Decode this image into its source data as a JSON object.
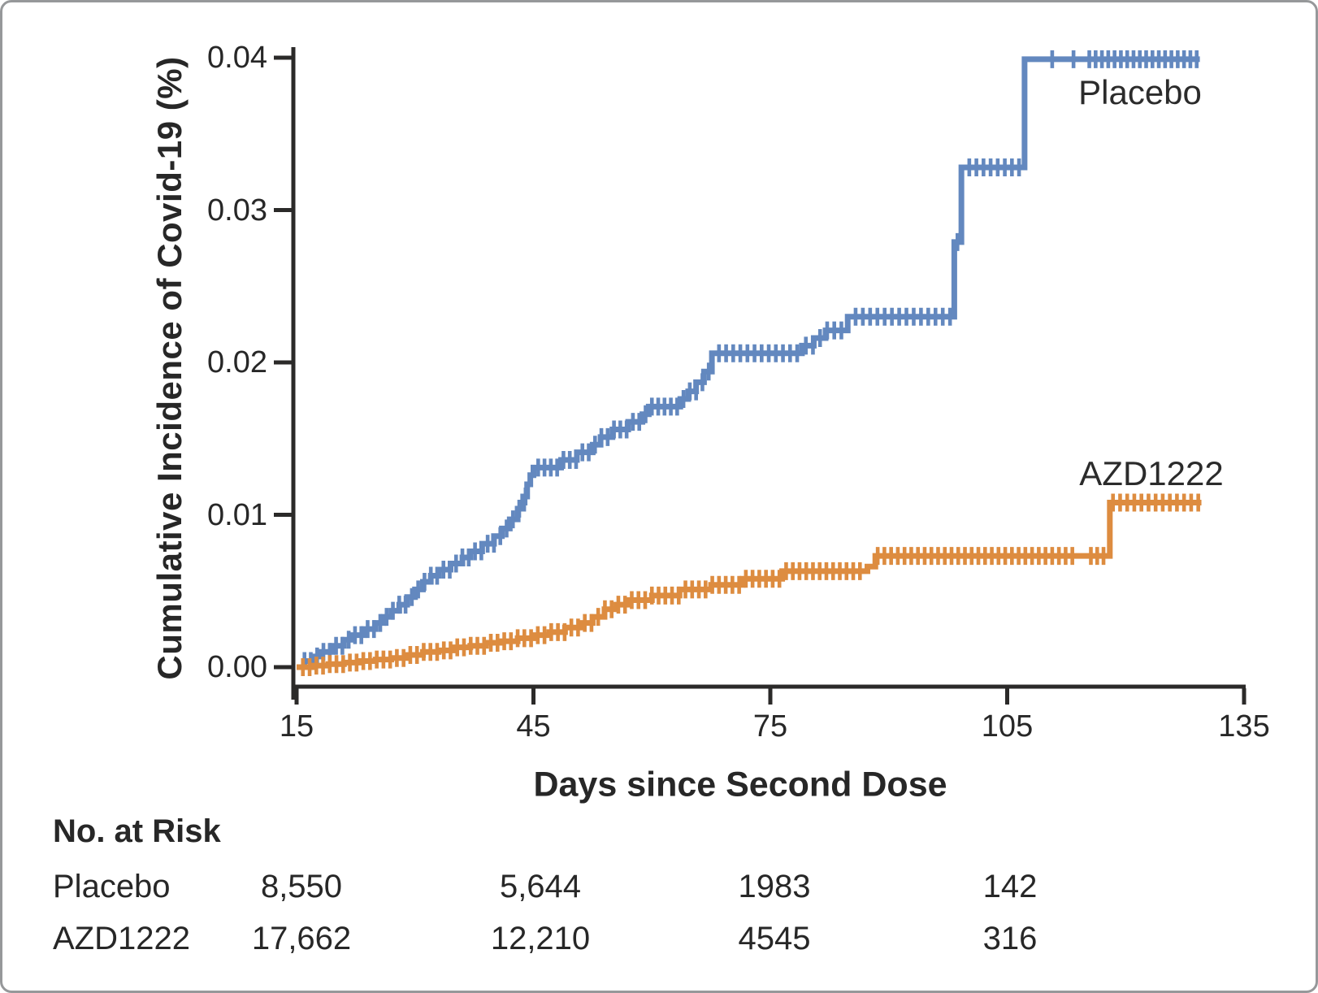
{
  "figure": {
    "background": "#ffffff",
    "border_color": "#96989a",
    "axis_color": "#2b2a29",
    "text_color": "#272727"
  },
  "chart_data": {
    "type": "line",
    "subtype": "kaplan-meier-cumulative-incidence-step-curves-with-censor-ticks",
    "title": "",
    "xlabel": "Days since Second Dose",
    "ylabel": "Cumulative Incidence of Covid-19 (%)",
    "xlim": [
      15,
      135
    ],
    "ylim": [
      0,
      0.04
    ],
    "grid": false,
    "legend_position": "labels-near-curves",
    "x_tick_values": [
      15,
      45,
      75,
      105,
      135
    ],
    "x_tick_labels": [
      "15",
      "45",
      "75",
      "105",
      "135"
    ],
    "y_tick_values": [
      0,
      0.01,
      0.02,
      0.03,
      0.04
    ],
    "y_tick_labels": [
      "0.00",
      "0.01",
      "0.02",
      "0.03",
      "0.04"
    ],
    "series": [
      {
        "name": "Placebo",
        "color": "#6388bf",
        "end_day": 129.4,
        "steps": [
          [
            15,
            0
          ],
          [
            16,
            0.0004
          ],
          [
            17,
            0.0007
          ],
          [
            18,
            0.001
          ],
          [
            19.5,
            0.0014
          ],
          [
            21,
            0.0018
          ],
          [
            22,
            0.0021
          ],
          [
            23.5,
            0.0025
          ],
          [
            25,
            0.0029
          ],
          [
            26,
            0.0033
          ],
          [
            27,
            0.0037
          ],
          [
            28,
            0.0041
          ],
          [
            29,
            0.0046
          ],
          [
            30,
            0.0051
          ],
          [
            31,
            0.0056
          ],
          [
            32,
            0.006
          ],
          [
            33,
            0.0064
          ],
          [
            34.5,
            0.0068
          ],
          [
            36,
            0.0072
          ],
          [
            37,
            0.0076
          ],
          [
            38.5,
            0.0081
          ],
          [
            40,
            0.0086
          ],
          [
            41,
            0.0091
          ],
          [
            42,
            0.0097
          ],
          [
            43,
            0.0104
          ],
          [
            43.7,
            0.0112
          ],
          [
            44.2,
            0.012
          ],
          [
            44.6,
            0.0126
          ],
          [
            45,
            0.0131
          ],
          [
            48.5,
            0.0136
          ],
          [
            50.5,
            0.0141
          ],
          [
            52.5,
            0.0146
          ],
          [
            53.5,
            0.0151
          ],
          [
            55,
            0.0156
          ],
          [
            57,
            0.0161
          ],
          [
            58.8,
            0.0166
          ],
          [
            59.6,
            0.0171
          ],
          [
            63.6,
            0.0176
          ],
          [
            64.6,
            0.0181
          ],
          [
            65.6,
            0.0187
          ],
          [
            66.6,
            0.0194
          ],
          [
            67.6,
            0.0206
          ],
          [
            79,
            0.0211
          ],
          [
            80.5,
            0.0216
          ],
          [
            82,
            0.0221
          ],
          [
            84.8,
            0.023
          ],
          [
            98.3,
            0.0279
          ],
          [
            99.2,
            0.0328
          ],
          [
            107.2,
            0.0399
          ]
        ],
        "censor_runs": [
          [
            16,
            44,
            0.8
          ],
          [
            45.6,
            67.2,
            0.8
          ],
          [
            68.5,
            78.4,
            0.9
          ],
          [
            79.5,
            84,
            0.9
          ],
          [
            85.8,
            97.9,
            0.92
          ],
          [
            100.2,
            106.5,
            0.9
          ],
          [
            115.4,
            129.4,
            0.8
          ]
        ],
        "censor_extra": [
          98.7,
          110.7,
          113.4
        ]
      },
      {
        "name": "AZD1222",
        "color": "#dd8c40",
        "end_day": 129.6,
        "steps": [
          [
            15,
            0
          ],
          [
            17,
            0.0001
          ],
          [
            19,
            0.0002
          ],
          [
            21,
            0.0003
          ],
          [
            23,
            0.0004
          ],
          [
            25,
            0.0005
          ],
          [
            27,
            0.0006
          ],
          [
            29,
            0.0008
          ],
          [
            31,
            0.001
          ],
          [
            33,
            0.0011
          ],
          [
            35,
            0.0013
          ],
          [
            37,
            0.0014
          ],
          [
            39,
            0.0016
          ],
          [
            41,
            0.0017
          ],
          [
            43,
            0.0019
          ],
          [
            45,
            0.0021
          ],
          [
            47,
            0.0023
          ],
          [
            49,
            0.0026
          ],
          [
            51,
            0.0029
          ],
          [
            52.5,
            0.0033
          ],
          [
            54,
            0.0038
          ],
          [
            55.5,
            0.0041
          ],
          [
            57,
            0.0044
          ],
          [
            60,
            0.0047
          ],
          [
            63.5,
            0.0051
          ],
          [
            67.5,
            0.0054
          ],
          [
            71.5,
            0.0058
          ],
          [
            76.5,
            0.0063
          ],
          [
            87.3,
            0.0066
          ],
          [
            88.3,
            0.0073
          ],
          [
            118,
            0.0108
          ]
        ],
        "censor_runs": [
          [
            15.8,
            86.6,
            0.85
          ],
          [
            88.6,
            113.7,
            0.85
          ],
          [
            115.6,
            117.2,
            0.8
          ],
          [
            118.4,
            129.3,
            0.9
          ]
        ],
        "censor_extra": []
      }
    ]
  },
  "curve_labels": {
    "placebo": "Placebo",
    "azd1222": "AZD1222"
  },
  "risk_table": {
    "title": "No. at Risk",
    "columns_days": [
      15,
      45,
      75,
      105
    ],
    "rows": [
      {
        "label": "Placebo",
        "values": [
          "8,550",
          "5,644",
          "1983",
          "142"
        ]
      },
      {
        "label": "AZD1222",
        "values": [
          "17,662",
          "12,210",
          "4545",
          "316"
        ]
      }
    ]
  }
}
